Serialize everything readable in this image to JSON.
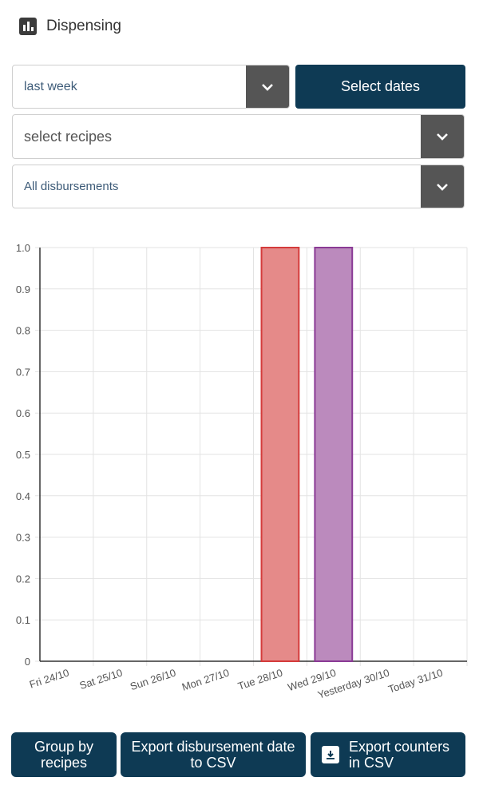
{
  "header": {
    "title": "Dispensing",
    "icon": "bar-chart-icon"
  },
  "filters": {
    "period_value": "last week",
    "select_dates_label": "Select dates",
    "recipes_placeholder": "select recipes",
    "disbursements_value": "All disbursements"
  },
  "colors": {
    "primary": "#0e3a54",
    "caret_bg": "#555555",
    "bar_red_fill": "#e58a89",
    "bar_red_stroke": "#d43b3b",
    "bar_purple_fill": "#bb8abd",
    "bar_purple_stroke": "#8a3a95"
  },
  "chart_data": {
    "type": "bar",
    "categories": [
      "Fri 24/10",
      "Sat 25/10",
      "Sun 26/10",
      "Mon 27/10",
      "Tue 28/10",
      "Wed 29/10",
      "Yesterday 30/10",
      "Today 31/10"
    ],
    "values": [
      0,
      0,
      0,
      0,
      1,
      1,
      0,
      0
    ],
    "bar_colors": [
      "",
      "",
      "",
      "",
      "red",
      "purple",
      "",
      ""
    ],
    "y_ticks": [
      "0",
      "0.1",
      "0.2",
      "0.3",
      "0.4",
      "0.5",
      "0.6",
      "0.7",
      "0.8",
      "0.9",
      "1.0"
    ],
    "ylim": [
      0,
      1
    ],
    "grid": true
  },
  "actions": {
    "group_by": "Group by recipes",
    "export_date": "Export disbursement date to CSV",
    "export_counters": "Export counters in CSV",
    "export_counters_icon": "download-box-icon"
  }
}
